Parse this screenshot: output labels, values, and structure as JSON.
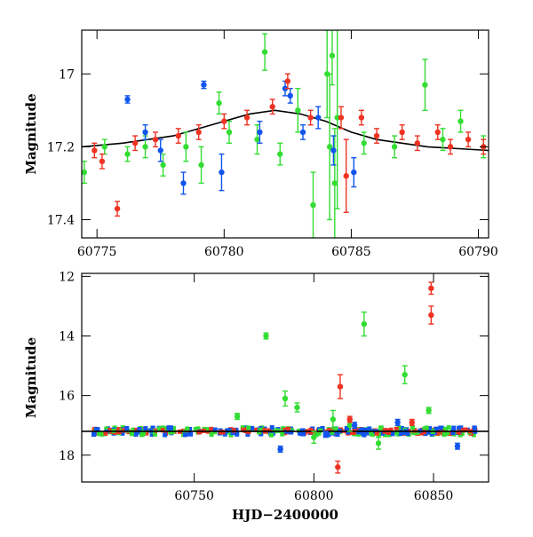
{
  "chart_data": [
    {
      "type": "scatter",
      "xlabel": "",
      "ylabel": "Magnitude",
      "xlim": [
        60774.4,
        60790.4
      ],
      "ylim": [
        17.45,
        16.88
      ],
      "y_inverted": true,
      "xticks": [
        60775,
        60780,
        60785,
        60790
      ],
      "yticks": [
        17,
        17.2,
        17.4
      ],
      "xtick_labels": [
        "60775",
        "60780",
        "60785",
        "60790"
      ],
      "ytick_labels": [
        "17",
        "17.2",
        "17.4"
      ],
      "grid": false,
      "legend": "none",
      "colors": {
        "green": "#33dd33",
        "blue": "#1155ee",
        "red": "#ee3322",
        "model": "#000000"
      },
      "model_curve": {
        "x": [
          60774.4,
          60776,
          60778,
          60780,
          60781,
          60782,
          60783,
          60784,
          60785,
          60786,
          60788,
          60790.4
        ],
        "y": [
          17.2,
          17.19,
          17.17,
          17.13,
          17.11,
          17.1,
          17.11,
          17.13,
          17.16,
          17.18,
          17.2,
          17.21
        ]
      },
      "series": [
        {
          "color": "green",
          "points": [
            {
              "x": 60774.5,
              "y": 17.27,
              "err": 0.03
            },
            {
              "x": 60775.3,
              "y": 17.2,
              "err": 0.02
            },
            {
              "x": 60776.2,
              "y": 17.22,
              "err": 0.02
            },
            {
              "x": 60776.9,
              "y": 17.2,
              "err": 0.03
            },
            {
              "x": 60777.6,
              "y": 17.25,
              "err": 0.03
            },
            {
              "x": 60778.5,
              "y": 17.2,
              "err": 0.04
            },
            {
              "x": 60779.1,
              "y": 17.25,
              "err": 0.05
            },
            {
              "x": 60779.8,
              "y": 17.08,
              "err": 0.03
            },
            {
              "x": 60780.2,
              "y": 17.16,
              "err": 0.03
            },
            {
              "x": 60781.3,
              "y": 17.18,
              "err": 0.04
            },
            {
              "x": 60781.6,
              "y": 16.94,
              "err": 0.05
            },
            {
              "x": 60782.2,
              "y": 17.22,
              "err": 0.03
            },
            {
              "x": 60782.9,
              "y": 17.1,
              "err": 0.06
            },
            {
              "x": 60783.5,
              "y": 17.36,
              "err": 0.09
            },
            {
              "x": 60784.05,
              "y": 17.0,
              "err": 0.12
            },
            {
              "x": 60784.15,
              "y": 17.2,
              "err": 0.2
            },
            {
              "x": 60784.25,
              "y": 16.95,
              "err": 0.08
            },
            {
              "x": 60784.35,
              "y": 17.3,
              "err": 0.15
            },
            {
              "x": 60784.45,
              "y": 17.12,
              "err": 0.25
            },
            {
              "x": 60785.5,
              "y": 17.19,
              "err": 0.03
            },
            {
              "x": 60786.7,
              "y": 17.2,
              "err": 0.03
            },
            {
              "x": 60787.9,
              "y": 17.03,
              "err": 0.07
            },
            {
              "x": 60788.6,
              "y": 17.18,
              "err": 0.03
            },
            {
              "x": 60789.3,
              "y": 17.13,
              "err": 0.03
            },
            {
              "x": 60790.2,
              "y": 17.2,
              "err": 0.03
            }
          ]
        },
        {
          "color": "blue",
          "points": [
            {
              "x": 60776.2,
              "y": 17.07,
              "err": 0.01
            },
            {
              "x": 60776.9,
              "y": 17.16,
              "err": 0.02
            },
            {
              "x": 60777.5,
              "y": 17.21,
              "err": 0.03
            },
            {
              "x": 60778.4,
              "y": 17.3,
              "err": 0.03
            },
            {
              "x": 60779.2,
              "y": 17.03,
              "err": 0.01
            },
            {
              "x": 60779.9,
              "y": 17.27,
              "err": 0.05
            },
            {
              "x": 60781.4,
              "y": 17.16,
              "err": 0.03
            },
            {
              "x": 60782.4,
              "y": 17.04,
              "err": 0.02
            },
            {
              "x": 60782.6,
              "y": 17.06,
              "err": 0.02
            },
            {
              "x": 60783.1,
              "y": 17.16,
              "err": 0.02
            },
            {
              "x": 60783.7,
              "y": 17.12,
              "err": 0.03
            },
            {
              "x": 60784.3,
              "y": 17.21,
              "err": 0.04
            },
            {
              "x": 60785.1,
              "y": 17.27,
              "err": 0.04
            }
          ]
        },
        {
          "color": "red",
          "points": [
            {
              "x": 60774.9,
              "y": 17.21,
              "err": 0.02
            },
            {
              "x": 60775.2,
              "y": 17.24,
              "err": 0.02
            },
            {
              "x": 60775.8,
              "y": 17.37,
              "err": 0.02
            },
            {
              "x": 60776.5,
              "y": 17.19,
              "err": 0.02
            },
            {
              "x": 60777.3,
              "y": 17.18,
              "err": 0.02
            },
            {
              "x": 60778.2,
              "y": 17.17,
              "err": 0.02
            },
            {
              "x": 60779.0,
              "y": 17.16,
              "err": 0.02
            },
            {
              "x": 60780.0,
              "y": 17.13,
              "err": 0.02
            },
            {
              "x": 60780.9,
              "y": 17.12,
              "err": 0.02
            },
            {
              "x": 60781.9,
              "y": 17.09,
              "err": 0.02
            },
            {
              "x": 60782.5,
              "y": 17.02,
              "err": 0.02
            },
            {
              "x": 60783.4,
              "y": 17.12,
              "err": 0.02
            },
            {
              "x": 60784.6,
              "y": 17.12,
              "err": 0.03
            },
            {
              "x": 60784.8,
              "y": 17.28,
              "err": 0.1
            },
            {
              "x": 60785.4,
              "y": 17.12,
              "err": 0.02
            },
            {
              "x": 60786.0,
              "y": 17.17,
              "err": 0.02
            },
            {
              "x": 60787.0,
              "y": 17.16,
              "err": 0.02
            },
            {
              "x": 60787.6,
              "y": 17.19,
              "err": 0.02
            },
            {
              "x": 60788.4,
              "y": 17.16,
              "err": 0.02
            },
            {
              "x": 60788.9,
              "y": 17.2,
              "err": 0.02
            },
            {
              "x": 60789.6,
              "y": 17.18,
              "err": 0.02
            },
            {
              "x": 60790.2,
              "y": 17.2,
              "err": 0.02
            }
          ]
        }
      ]
    },
    {
      "type": "scatter",
      "xlabel": "HJD−2400000",
      "ylabel": "Magnitude",
      "xlim": [
        60703,
        60873
      ],
      "ylim": [
        18.9,
        11.9
      ],
      "y_inverted": true,
      "xticks": [
        60750,
        60800,
        60850
      ],
      "yticks": [
        12,
        14,
        16,
        18
      ],
      "xtick_labels": [
        "60750",
        "60800",
        "60850"
      ],
      "ytick_labels": [
        "12",
        "14",
        "16",
        "18"
      ],
      "grid": false,
      "legend": "none",
      "colors": {
        "green": "#33dd33",
        "blue": "#1155ee",
        "red": "#ee3322",
        "model": "#000000"
      },
      "model_curve": {
        "x": [
          60703,
          60873
        ],
        "y": [
          17.2,
          17.2
        ]
      },
      "baseline": {
        "x_start": 60708,
        "x_end": 60868,
        "y_mean": 17.2,
        "scatter": 0.1
      },
      "series": [
        {
          "color": "green",
          "points": [
            {
              "x": 60780,
              "y": 14.0,
              "err": 0.1
            },
            {
              "x": 60788,
              "y": 16.1,
              "err": 0.25
            },
            {
              "x": 60793,
              "y": 16.4,
              "err": 0.15
            },
            {
              "x": 60800,
              "y": 17.4,
              "err": 0.2
            },
            {
              "x": 60808,
              "y": 16.8,
              "err": 0.3
            },
            {
              "x": 60815,
              "y": 17.0,
              "err": 0.2
            },
            {
              "x": 60821,
              "y": 13.6,
              "err": 0.4
            },
            {
              "x": 60827,
              "y": 17.6,
              "err": 0.2
            },
            {
              "x": 60838,
              "y": 15.3,
              "err": 0.3
            },
            {
              "x": 60848,
              "y": 16.5,
              "err": 0.1
            },
            {
              "x": 60768,
              "y": 16.7,
              "err": 0.1
            }
          ]
        },
        {
          "color": "blue",
          "points": [
            {
              "x": 60786,
              "y": 17.8,
              "err": 0.1
            },
            {
              "x": 60805,
              "y": 17.3,
              "err": 0.1
            },
            {
              "x": 60817,
              "y": 17.0,
              "err": 0.1
            },
            {
              "x": 60835,
              "y": 16.9,
              "err": 0.1
            },
            {
              "x": 60860,
              "y": 17.7,
              "err": 0.1
            }
          ]
        },
        {
          "color": "red",
          "points": [
            {
              "x": 60849,
              "y": 12.4,
              "err": 0.2
            },
            {
              "x": 60849,
              "y": 13.3,
              "err": 0.3
            },
            {
              "x": 60811,
              "y": 15.7,
              "err": 0.4
            },
            {
              "x": 60810,
              "y": 18.4,
              "err": 0.2
            },
            {
              "x": 60815,
              "y": 16.8,
              "err": 0.1
            },
            {
              "x": 60841,
              "y": 16.9,
              "err": 0.1
            }
          ]
        }
      ]
    }
  ]
}
